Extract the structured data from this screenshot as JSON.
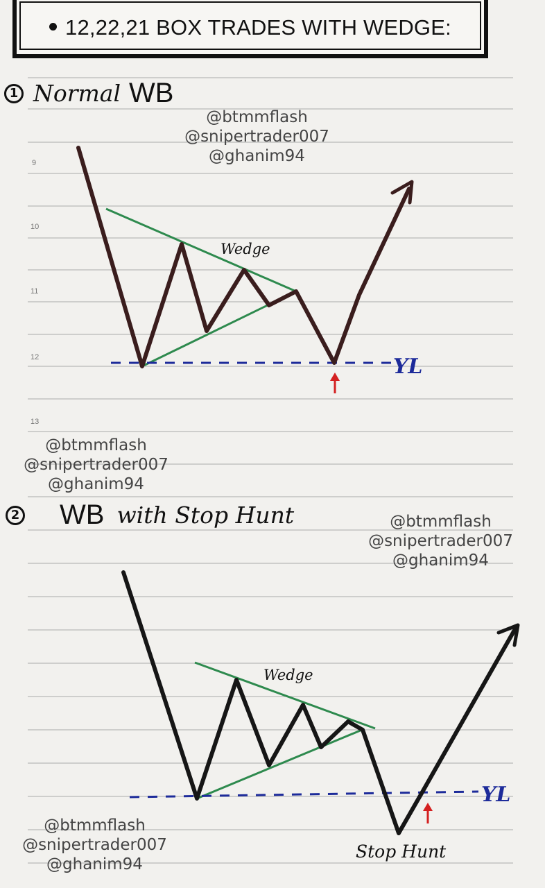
{
  "title": "12,22,21 BOX TRADES WITH WEDGE:",
  "watermark_lines": [
    "@btmmflash",
    "@snipertrader007",
    "@ghanim94"
  ],
  "line_numbers": [
    "9",
    "10",
    "11",
    "12",
    "13"
  ],
  "section1": {
    "number": "1",
    "heading_script": "Normal",
    "heading_print": "WB",
    "wedge_label": "Wedge",
    "level_label": "YL"
  },
  "section2": {
    "number": "2",
    "heading_print": "WB",
    "heading_script": "with Stop Hunt",
    "wedge_label": "Wedge",
    "level_label": "YL",
    "stop_hunt_label": "Stop Hunt"
  },
  "colors": {
    "price_line": "#1a1212",
    "wedge_line": "#2e8a4e",
    "level_line": "#1d2b9a",
    "arrow": "#d42020",
    "section1_price": "#3a1d1d"
  }
}
